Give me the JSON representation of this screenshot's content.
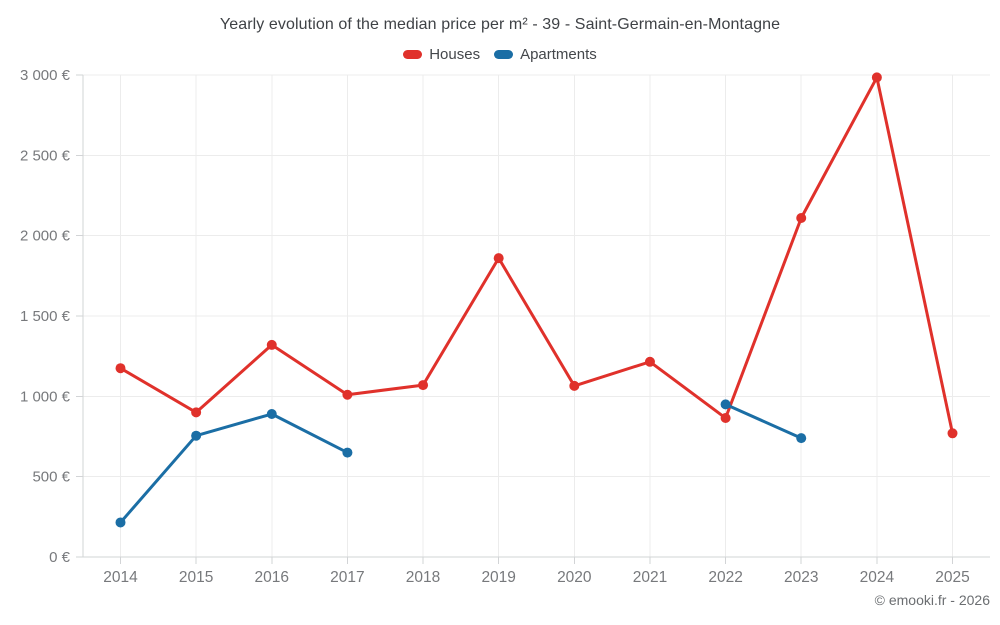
{
  "chart_data": {
    "type": "line",
    "title": "Yearly evolution of the median price per m² - 39 - Saint-Germain-en-Montagne",
    "xlabel": "",
    "ylabel": "",
    "x": [
      "2014",
      "2015",
      "2016",
      "2017",
      "2018",
      "2019",
      "2020",
      "2021",
      "2022",
      "2023",
      "2024",
      "2025"
    ],
    "series": [
      {
        "name": "Houses",
        "color": "#e0312b",
        "values": [
          1175,
          900,
          1320,
          1010,
          1070,
          1860,
          1065,
          1215,
          865,
          2110,
          2985,
          770
        ]
      },
      {
        "name": "Apartments",
        "color": "#1b6ea5",
        "values": [
          215,
          755,
          890,
          650,
          null,
          null,
          null,
          null,
          950,
          740,
          null,
          null
        ]
      }
    ],
    "ylim": [
      0,
      3000
    ],
    "yticks": [
      0,
      500,
      1000,
      1500,
      2000,
      2500,
      3000
    ],
    "ytick_labels": [
      "0 €",
      "500 €",
      "1 000 €",
      "1 500 €",
      "2 000 €",
      "2 500 €",
      "3 000 €"
    ],
    "grid": true,
    "legend_position": "top",
    "marker_radius": 5,
    "line_width": 3
  },
  "footer": {
    "copyright": "© emooki.fr - 2026"
  },
  "palette": {
    "grid_line": "#ececec",
    "axis_line": "#d2d4d6",
    "axis_text": "#77797c",
    "title_text": "#3f4246",
    "footer_text": "#6b6e71",
    "background": "#ffffff"
  }
}
